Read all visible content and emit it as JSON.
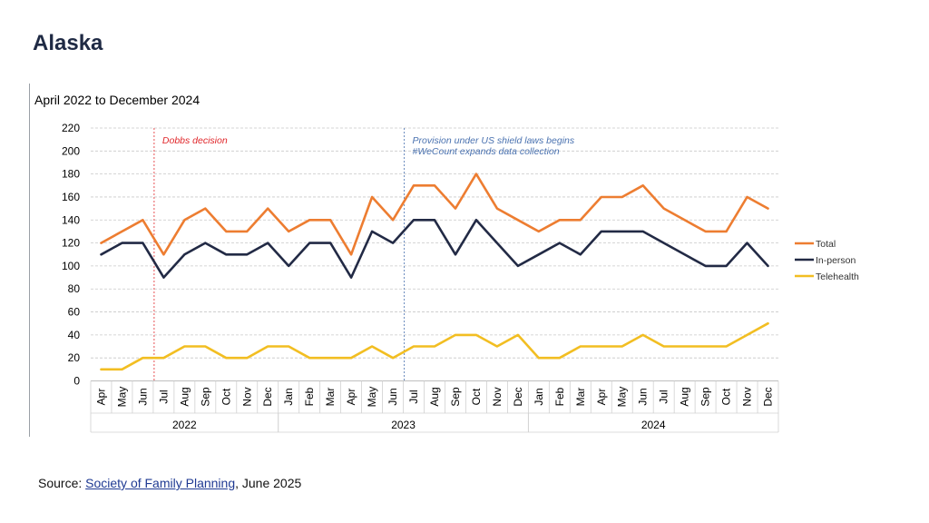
{
  "page": {
    "title": "Alaska",
    "source_prefix": "Source: ",
    "source_link": "Society of Family Planning",
    "source_suffix": ", June 2025"
  },
  "colors": {
    "total": "#ED7D31",
    "in_person": "#222A45",
    "telehealth": "#F2BE22",
    "dobbs": "#E0262A",
    "shield": "#4A72B0",
    "grid": "#C8C8C8"
  },
  "chart_data": {
    "type": "line",
    "title": "April 2022 to December 2024",
    "ylim": [
      0,
      220
    ],
    "yticks": [
      0,
      20,
      40,
      60,
      80,
      100,
      120,
      140,
      160,
      180,
      200,
      220
    ],
    "grid": true,
    "legend_position": "right",
    "categories": [
      "Apr",
      "May",
      "Jun",
      "Jul",
      "Aug",
      "Sep",
      "Oct",
      "Nov",
      "Dec",
      "Jan",
      "Feb",
      "Mar",
      "Apr",
      "May",
      "Jun",
      "Jul",
      "Aug",
      "Sep",
      "Oct",
      "Nov",
      "Dec",
      "Jan",
      "Feb",
      "Mar",
      "Apr",
      "May",
      "Jun",
      "Jul",
      "Aug",
      "Sep",
      "Oct",
      "Nov",
      "Dec"
    ],
    "years": [
      {
        "label": "2022",
        "start": 0,
        "end": 8
      },
      {
        "label": "2023",
        "start": 9,
        "end": 20
      },
      {
        "label": "2024",
        "start": 21,
        "end": 32
      }
    ],
    "series": [
      {
        "name": "Total",
        "color_key": "total",
        "values": [
          120,
          130,
          140,
          110,
          140,
          150,
          130,
          130,
          150,
          130,
          140,
          140,
          110,
          160,
          140,
          170,
          170,
          150,
          180,
          150,
          140,
          130,
          140,
          140,
          160,
          160,
          170,
          150,
          140,
          130,
          130,
          160,
          150
        ]
      },
      {
        "name": "In-person",
        "color_key": "in_person",
        "values": [
          110,
          120,
          120,
          90,
          110,
          120,
          110,
          110,
          120,
          100,
          120,
          120,
          90,
          130,
          120,
          140,
          140,
          110,
          140,
          120,
          100,
          110,
          120,
          110,
          130,
          130,
          130,
          120,
          110,
          100,
          100,
          120,
          100
        ]
      },
      {
        "name": "Telehealth",
        "color_key": "telehealth",
        "values": [
          10,
          10,
          20,
          20,
          30,
          30,
          20,
          20,
          30,
          30,
          20,
          20,
          20,
          30,
          20,
          30,
          30,
          40,
          40,
          30,
          40,
          20,
          20,
          30,
          30,
          30,
          40,
          30,
          30,
          30,
          30,
          40,
          50
        ]
      }
    ],
    "annotations": [
      {
        "after_index": 2,
        "color_key": "dobbs",
        "lines": [
          "Dobbs decision"
        ]
      },
      {
        "after_index": 14,
        "color_key": "shield",
        "lines": [
          "Provision under US shield laws begins",
          "#WeCount expands data collection"
        ]
      }
    ]
  }
}
